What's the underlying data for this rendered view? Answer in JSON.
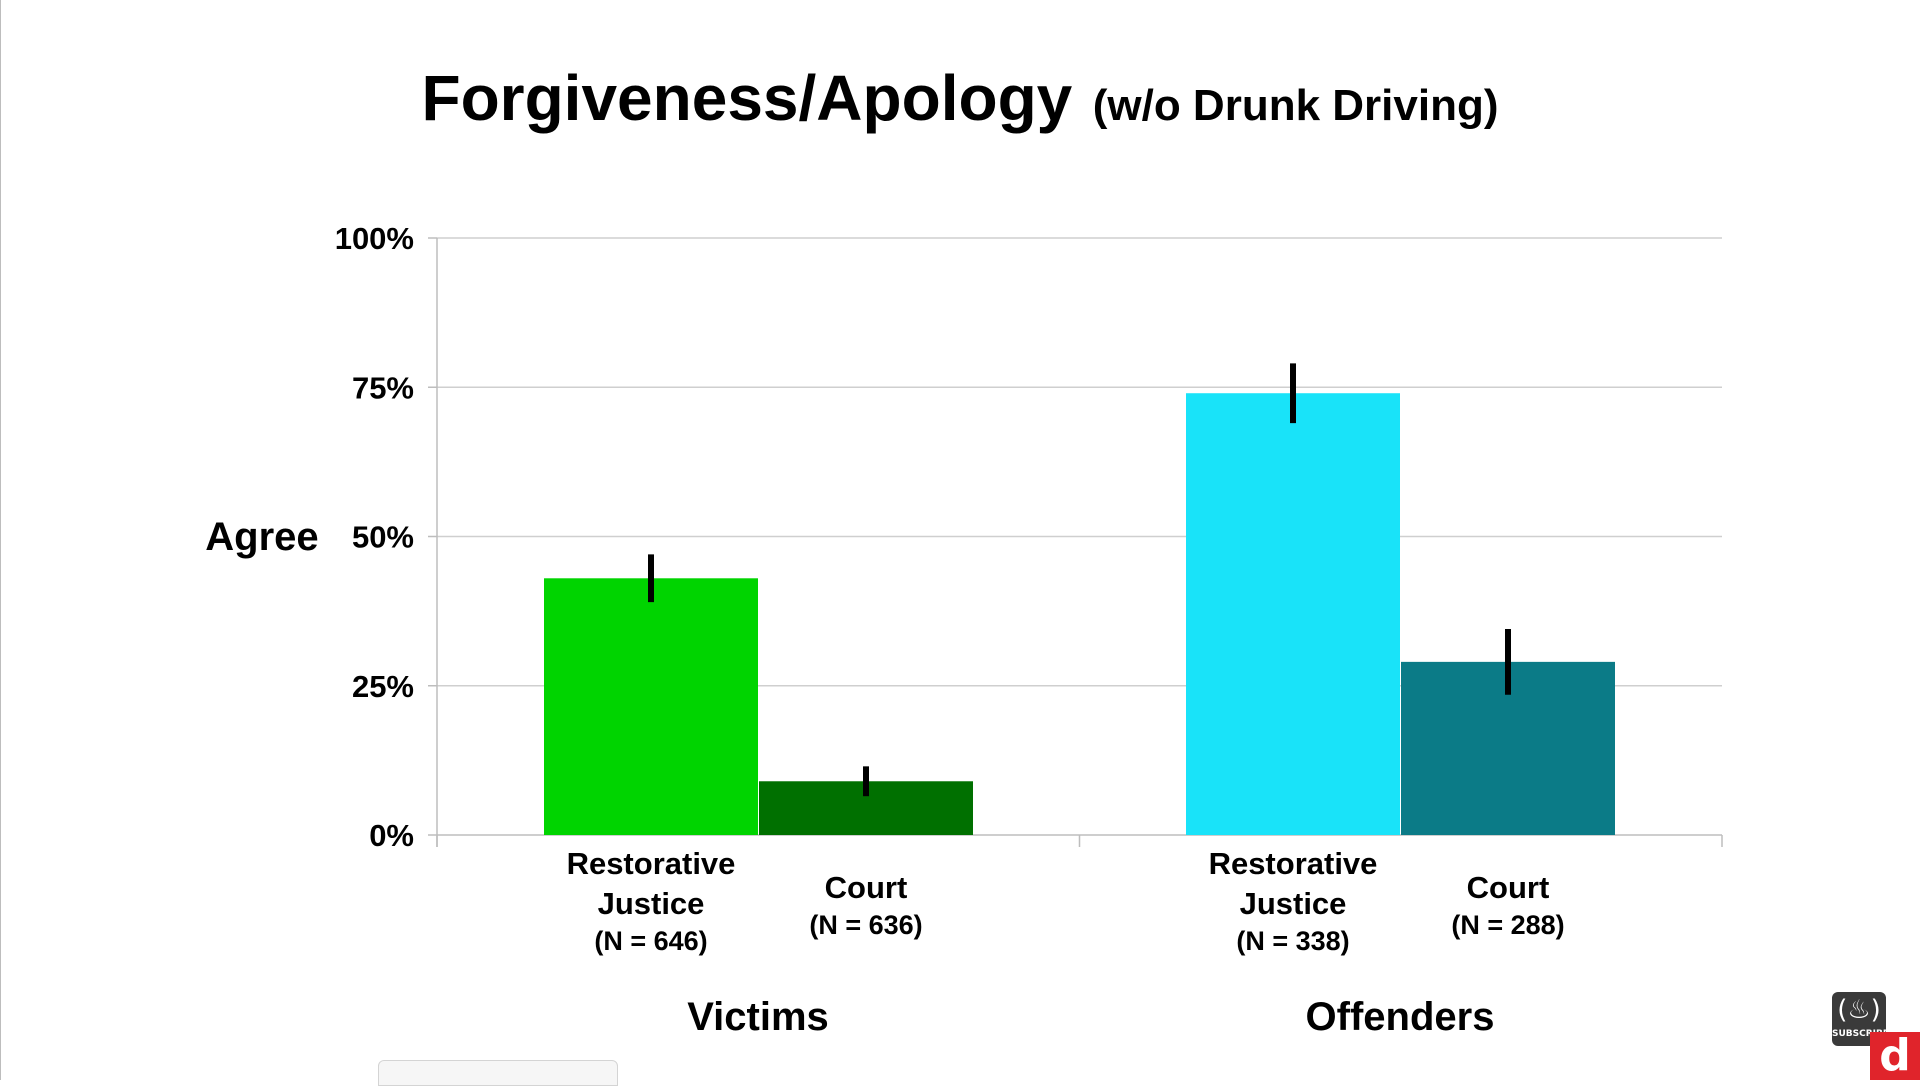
{
  "chart_data": {
    "type": "bar",
    "title": "Forgiveness/Apology",
    "subtitle": "(w/o Drunk Driving)",
    "ylabel": "Agree",
    "ylim": [
      0,
      100
    ],
    "yticks": [
      0,
      25,
      50,
      75,
      100
    ],
    "ytick_labels": [
      "0%",
      "25%",
      "50%",
      "75%",
      "100%"
    ],
    "grid": true,
    "groups": [
      "Victims",
      "Offenders"
    ],
    "categories": [
      "Restorative Justice",
      "Court"
    ],
    "bars": [
      {
        "group": "Victims",
        "label_lines": [
          "Restorative",
          "Justice"
        ],
        "n_label": "(N = 646)",
        "value": 43,
        "err_low": 39,
        "err_high": 47,
        "color": "#00d400"
      },
      {
        "group": "Victims",
        "label_lines": [
          "Court"
        ],
        "n_label": "(N = 636)",
        "value": 9,
        "err_low": 6.5,
        "err_high": 11.5,
        "color": "#007000"
      },
      {
        "group": "Offenders",
        "label_lines": [
          "Restorative",
          "Justice"
        ],
        "n_label": "(N = 338)",
        "value": 74,
        "err_low": 69,
        "err_high": 79,
        "color": "#19e3f9"
      },
      {
        "group": "Offenders",
        "label_lines": [
          "Court"
        ],
        "n_label": "(N = 288)",
        "value": 29,
        "err_low": 23.5,
        "err_high": 34.5,
        "color": "#0b7b87"
      }
    ]
  },
  "overlay": {
    "subscribe_label": "SUBSCRIBE",
    "subscribe_icon": "flame-icon",
    "logo_letter": "d"
  }
}
